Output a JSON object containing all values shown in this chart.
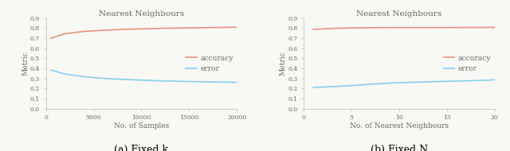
{
  "left": {
    "title": "Nearest Neighbours",
    "xlabel": "No. of Samples",
    "ylabel": "Metric",
    "xlim": [
      0,
      20000
    ],
    "ylim": [
      0.0,
      0.9
    ],
    "xticks": [
      0,
      5000,
      10000,
      15000,
      20000
    ],
    "yticks": [
      0.0,
      0.1,
      0.2,
      0.3,
      0.4,
      0.5,
      0.6,
      0.7,
      0.8,
      0.9
    ],
    "accuracy_x": [
      500,
      2000,
      4000,
      6000,
      8000,
      10000,
      12000,
      15000,
      18000,
      20000
    ],
    "accuracy_y": [
      0.7,
      0.745,
      0.768,
      0.779,
      0.788,
      0.793,
      0.798,
      0.803,
      0.807,
      0.81
    ],
    "error_x": [
      500,
      2000,
      4000,
      6000,
      8000,
      10000,
      12000,
      15000,
      18000,
      20000
    ],
    "error_y": [
      0.385,
      0.345,
      0.318,
      0.302,
      0.292,
      0.284,
      0.277,
      0.27,
      0.265,
      0.262
    ],
    "caption": "(a) Fixed k"
  },
  "right": {
    "title": "Nearest Neighbours",
    "xlabel": "No. of Nearest Neighbours",
    "ylabel": "Metric",
    "xlim": [
      0,
      20
    ],
    "ylim": [
      0.0,
      0.9
    ],
    "xticks": [
      0,
      5,
      10,
      15,
      20
    ],
    "yticks": [
      0.0,
      0.1,
      0.2,
      0.3,
      0.4,
      0.5,
      0.6,
      0.7,
      0.8,
      0.9
    ],
    "accuracy_x": [
      1,
      2,
      3,
      4,
      5,
      7,
      9,
      12,
      15,
      18,
      20
    ],
    "accuracy_y": [
      0.788,
      0.793,
      0.798,
      0.8,
      0.803,
      0.805,
      0.806,
      0.806,
      0.806,
      0.807,
      0.808
    ],
    "error_x": [
      1,
      2,
      3,
      4,
      5,
      7,
      9,
      12,
      15,
      18,
      20
    ],
    "error_y": [
      0.21,
      0.215,
      0.22,
      0.224,
      0.23,
      0.244,
      0.255,
      0.265,
      0.272,
      0.28,
      0.287
    ],
    "caption": "(b) Fixed N"
  },
  "accuracy_color": "#E8927C",
  "error_color": "#87CEEB",
  "linewidth": 1.2,
  "legend_fontsize": 6.5,
  "tick_fontsize": 5.5,
  "label_fontsize": 6.5,
  "title_fontsize": 7.5,
  "caption_fontsize": 9,
  "bg_color": "#f8f8f5",
  "spine_color": "#bbbbbb",
  "text_color": "#666666"
}
